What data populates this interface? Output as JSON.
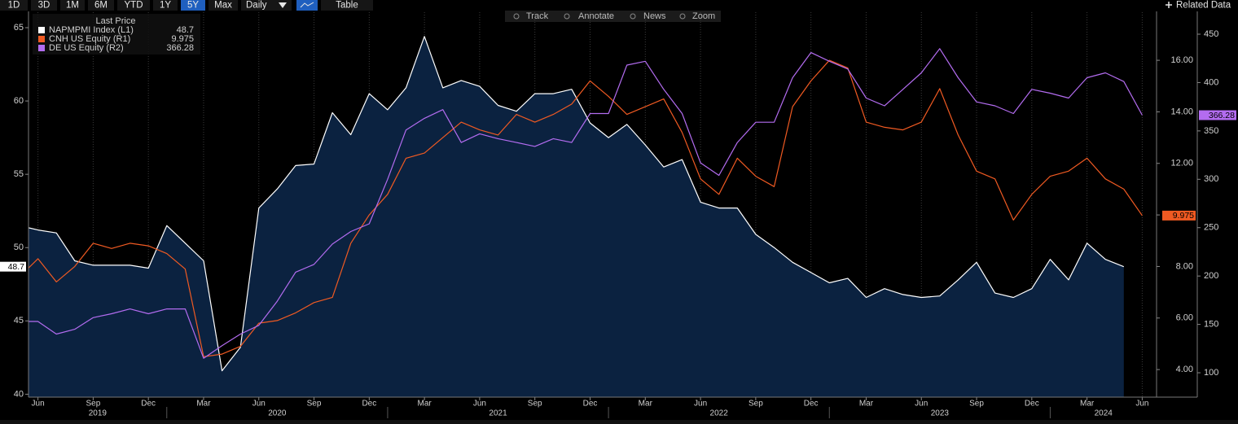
{
  "chart_data": {
    "type": "line",
    "toolbar": {
      "ranges": [
        "1D",
        "3D",
        "1M",
        "6M",
        "YTD",
        "1Y",
        "5Y",
        "Max"
      ],
      "active_index": 6,
      "frequency": "Daily",
      "table": "Table",
      "tools": [
        "Track",
        "Annotate",
        "News",
        "Zoom"
      ],
      "related": "Related Data"
    },
    "legend_title": "Last Price",
    "legend": "upper left",
    "x": [
      "2019-05",
      "2019-06",
      "2019-07",
      "2019-08",
      "2019-09",
      "2019-10",
      "2019-11",
      "2019-12",
      "2020-01",
      "2020-02",
      "2020-03",
      "2020-04",
      "2020-05",
      "2020-06",
      "2020-07",
      "2020-08",
      "2020-09",
      "2020-10",
      "2020-11",
      "2020-12",
      "2021-01",
      "2021-02",
      "2021-03",
      "2021-04",
      "2021-05",
      "2021-06",
      "2021-07",
      "2021-08",
      "2021-09",
      "2021-10",
      "2021-11",
      "2021-12",
      "2022-01",
      "2022-02",
      "2022-03",
      "2022-04",
      "2022-05",
      "2022-06",
      "2022-07",
      "2022-08",
      "2022-09",
      "2022-10",
      "2022-11",
      "2022-12",
      "2023-01",
      "2023-02",
      "2023-03",
      "2023-04",
      "2023-05",
      "2023-06",
      "2023-07",
      "2023-08",
      "2023-09",
      "2023-10",
      "2023-11",
      "2023-12",
      "2024-01",
      "2024-02",
      "2024-03",
      "2024-04",
      "2024-05",
      "2024-06"
    ],
    "series": [
      {
        "name": "NAPMPMI Index (L1)",
        "color": "#ffffff",
        "fill": "#0b2240",
        "axis": "y",
        "values": [
          51.5,
          51.2,
          51.0,
          49.1,
          48.8,
          48.8,
          48.8,
          48.6,
          51.5,
          50.3,
          49.1,
          41.6,
          43.2,
          52.7,
          54.0,
          55.6,
          55.7,
          59.2,
          57.7,
          60.5,
          59.4,
          60.9,
          64.4,
          60.9,
          61.4,
          61.0,
          59.7,
          59.3,
          60.5,
          60.5,
          60.8,
          58.5,
          57.5,
          58.4,
          57.0,
          55.5,
          56.0,
          53.1,
          52.7,
          52.7,
          50.9,
          50.0,
          49.0,
          48.3,
          47.6,
          47.9,
          46.6,
          47.2,
          46.8,
          46.6,
          46.7,
          47.8,
          49.0,
          46.9,
          46.6,
          47.2,
          49.2,
          47.8,
          50.3,
          49.2,
          48.7,
          null
        ]
      },
      {
        "name": "CNH US Equity (R1)",
        "color": "#f05a22",
        "axis": "y2",
        "values": [
          7.6,
          8.3,
          7.4,
          8.0,
          8.9,
          8.7,
          8.9,
          8.8,
          8.5,
          7.9,
          4.5,
          4.6,
          4.9,
          5.8,
          5.9,
          6.2,
          6.6,
          6.8,
          8.9,
          10.0,
          10.8,
          12.2,
          12.4,
          13.0,
          13.6,
          13.3,
          13.1,
          13.9,
          13.6,
          13.9,
          14.3,
          15.2,
          14.6,
          13.9,
          14.2,
          14.5,
          13.2,
          11.4,
          10.8,
          12.2,
          11.5,
          11.1,
          14.2,
          15.2,
          16.0,
          15.7,
          13.6,
          13.4,
          13.3,
          13.6,
          14.9,
          13.1,
          11.7,
          11.4,
          9.8,
          10.8,
          11.5,
          11.7,
          12.2,
          11.4,
          11.0,
          9.975
        ]
      },
      {
        "name": "DE US Equity (R2)",
        "color": "#b36cf0",
        "axis": "y3",
        "values": [
          153,
          153,
          140,
          145,
          157,
          161,
          166,
          161,
          166,
          166,
          115,
          128,
          140,
          149,
          174,
          204,
          212,
          233,
          246,
          254,
          300,
          351,
          363,
          372,
          338,
          347,
          342,
          338,
          334,
          342,
          338,
          368,
          368,
          418,
          422,
          393,
          368,
          317,
          304,
          338,
          359,
          359,
          405,
          431,
          422,
          414,
          384,
          376,
          393,
          410,
          435,
          405,
          380,
          376,
          368,
          393,
          389,
          384,
          405,
          410,
          401,
          366.28
        ]
      }
    ],
    "xlim": [
      "2019-05",
      "2024-07"
    ],
    "xticks": [
      {
        "value": "2019-06",
        "label": "Jun"
      },
      {
        "value": "2019-09",
        "label": "Sep"
      },
      {
        "value": "2019-12",
        "label": "Dec"
      },
      {
        "value": "2020-03",
        "label": "Mar"
      },
      {
        "value": "2020-06",
        "label": "Jun"
      },
      {
        "value": "2020-09",
        "label": "Sep"
      },
      {
        "value": "2020-12",
        "label": "Dec"
      },
      {
        "value": "2021-03",
        "label": "Mar"
      },
      {
        "value": "2021-06",
        "label": "Jun"
      },
      {
        "value": "2021-09",
        "label": "Sep"
      },
      {
        "value": "2021-12",
        "label": "Dec"
      },
      {
        "value": "2022-03",
        "label": "Mar"
      },
      {
        "value": "2022-06",
        "label": "Jun"
      },
      {
        "value": "2022-09",
        "label": "Sep"
      },
      {
        "value": "2022-12",
        "label": "Dec"
      },
      {
        "value": "2023-03",
        "label": "Mar"
      },
      {
        "value": "2023-06",
        "label": "Jun"
      },
      {
        "value": "2023-09",
        "label": "Sep"
      },
      {
        "value": "2023-12",
        "label": "Dec"
      },
      {
        "value": "2024-03",
        "label": "Mar"
      },
      {
        "value": "2024-06",
        "label": "Jun"
      }
    ],
    "years": [
      "2019",
      "2020",
      "2021",
      "2022",
      "2023",
      "2024"
    ],
    "xgrid": true,
    "ylim": [
      39.8,
      65.5
    ],
    "yticks": [
      40,
      45,
      50,
      55,
      60,
      65
    ],
    "y2lim": [
      2.93,
      17.55
    ],
    "y2ticks": [
      {
        "value": 4,
        "label": "4.00"
      },
      {
        "value": 6,
        "label": "6.00"
      },
      {
        "value": 8,
        "label": "8.00"
      },
      {
        "value": 10,
        "label": "10.00"
      },
      {
        "value": 12,
        "label": "12.00"
      },
      {
        "value": 14,
        "label": "14.00"
      },
      {
        "value": 16,
        "label": "16.00"
      }
    ],
    "y3lim": [
      74.8,
      464.3
    ],
    "y3ticks": [
      100,
      150,
      200,
      250,
      300,
      350,
      400,
      450
    ]
  }
}
